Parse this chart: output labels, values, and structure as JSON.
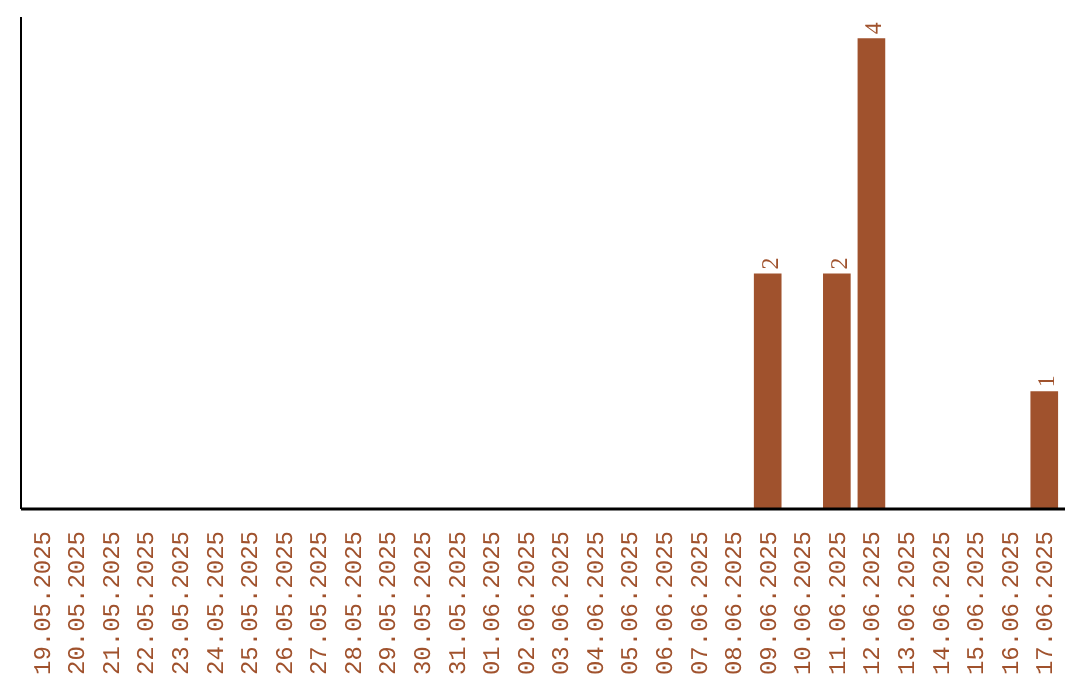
{
  "chart_data": {
    "type": "bar",
    "categories": [
      "19.05.2025",
      "20.05.2025",
      "21.05.2025",
      "22.05.2025",
      "23.05.2025",
      "24.05.2025",
      "25.05.2025",
      "26.05.2025",
      "27.05.2025",
      "28.05.2025",
      "29.05.2025",
      "30.05.2025",
      "31.05.2025",
      "01.06.2025",
      "02.06.2025",
      "03.06.2025",
      "04.06.2025",
      "05.06.2025",
      "06.06.2025",
      "07.06.2025",
      "08.06.2025",
      "09.06.2025",
      "10.06.2025",
      "11.06.2025",
      "12.06.2025",
      "13.06.2025",
      "14.06.2025",
      "15.06.2025",
      "16.06.2025",
      "17.06.2025"
    ],
    "values": [
      null,
      null,
      null,
      null,
      null,
      null,
      null,
      null,
      null,
      null,
      null,
      null,
      null,
      null,
      null,
      null,
      null,
      null,
      null,
      null,
      null,
      2,
      null,
      2,
      4,
      null,
      null,
      null,
      null,
      1
    ],
    "data_labels": true,
    "color": "#a0522d",
    "tick_labels": "x",
    "grid": false
  }
}
